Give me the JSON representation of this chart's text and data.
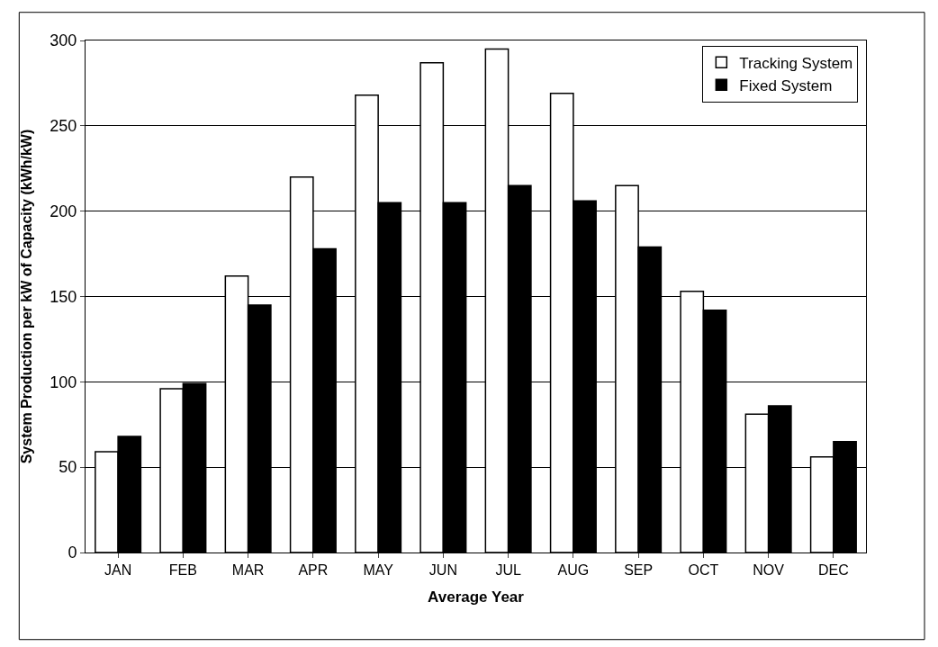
{
  "chart_data": {
    "type": "bar",
    "xlabel": "Average Year",
    "ylabel": "System Production per kW of Capacity (kWh/kW)",
    "categories": [
      "JAN",
      "FEB",
      "MAR",
      "APR",
      "MAY",
      "JUN",
      "JUL",
      "AUG",
      "SEP",
      "OCT",
      "NOV",
      "DEC"
    ],
    "series": [
      {
        "name": "Tracking System",
        "color": "#ffffff",
        "values": [
          59,
          96,
          162,
          220,
          268,
          287,
          295,
          269,
          215,
          153,
          81,
          56
        ]
      },
      {
        "name": "Fixed System",
        "color": "#000000",
        "values": [
          68,
          99,
          145,
          178,
          205,
          205,
          215,
          206,
          179,
          142,
          86,
          65
        ]
      }
    ],
    "ylim": [
      0,
      300
    ],
    "yticks": [
      0,
      50,
      100,
      150,
      200,
      250,
      300
    ],
    "grid": "y",
    "legend": "top right"
  }
}
